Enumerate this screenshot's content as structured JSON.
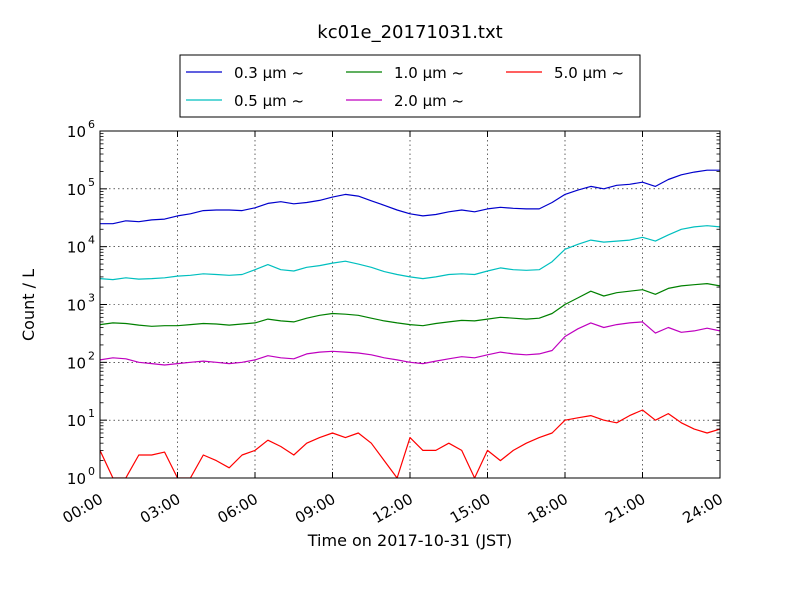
{
  "chart_data": {
    "type": "line",
    "title": "kc01e_20171031.txt",
    "xlabel": "Time on 2017-10-31 (JST)",
    "ylabel": "Count / L",
    "yscale": "log",
    "ylim": [
      1,
      1000000
    ],
    "xlim": [
      "00:00",
      "24:00"
    ],
    "x_ticks": [
      "00:00",
      "03:00",
      "06:00",
      "09:00",
      "12:00",
      "15:00",
      "18:00",
      "21:00",
      "24:00"
    ],
    "y_ticks": [
      {
        "base": "10",
        "exp": "0",
        "value": 1
      },
      {
        "base": "10",
        "exp": "1",
        "value": 10
      },
      {
        "base": "10",
        "exp": "2",
        "value": 100
      },
      {
        "base": "10",
        "exp": "3",
        "value": 1000
      },
      {
        "base": "10",
        "exp": "4",
        "value": 10000
      },
      {
        "base": "10",
        "exp": "5",
        "value": 100000
      },
      {
        "base": "10",
        "exp": "6",
        "value": 1000000
      }
    ],
    "grid": true,
    "legend_position": "top-center",
    "series": [
      {
        "name": "0.3 μm ~",
        "color": "#0000cc",
        "x": [
          "00:00",
          "00:30",
          "01:00",
          "01:30",
          "02:00",
          "02:30",
          "03:00",
          "03:30",
          "04:00",
          "04:30",
          "05:00",
          "05:30",
          "06:00",
          "06:30",
          "07:00",
          "07:30",
          "08:00",
          "08:30",
          "09:00",
          "09:30",
          "10:00",
          "10:30",
          "11:00",
          "11:30",
          "12:00",
          "12:30",
          "13:00",
          "13:30",
          "14:00",
          "14:30",
          "15:00",
          "15:30",
          "16:00",
          "16:30",
          "17:00",
          "17:30",
          "18:00",
          "18:30",
          "19:00",
          "19:30",
          "20:00",
          "20:30",
          "21:00",
          "21:30",
          "22:00",
          "22:30",
          "23:00",
          "23:30",
          "24:00"
        ],
        "y": [
          25000,
          25000,
          28000,
          27000,
          29000,
          30000,
          34000,
          37000,
          42000,
          43000,
          43000,
          42000,
          47000,
          56000,
          60000,
          55000,
          58000,
          63000,
          72000,
          80000,
          75000,
          62000,
          52000,
          43000,
          37000,
          34000,
          36000,
          40000,
          43000,
          40000,
          45000,
          48000,
          46000,
          45000,
          45000,
          58000,
          80000,
          95000,
          110000,
          100000,
          115000,
          120000,
          130000,
          110000,
          145000,
          175000,
          195000,
          210000,
          210000
        ]
      },
      {
        "name": "0.5 μm ~",
        "color": "#00bfbf",
        "x": [
          "00:00",
          "00:30",
          "01:00",
          "01:30",
          "02:00",
          "02:30",
          "03:00",
          "03:30",
          "04:00",
          "04:30",
          "05:00",
          "05:30",
          "06:00",
          "06:30",
          "07:00",
          "07:30",
          "08:00",
          "08:30",
          "09:00",
          "09:30",
          "10:00",
          "10:30",
          "11:00",
          "11:30",
          "12:00",
          "12:30",
          "13:00",
          "13:30",
          "14:00",
          "14:30",
          "15:00",
          "15:30",
          "16:00",
          "16:30",
          "17:00",
          "17:30",
          "18:00",
          "18:30",
          "19:00",
          "19:30",
          "20:00",
          "20:30",
          "21:00",
          "21:30",
          "22:00",
          "22:30",
          "23:00",
          "23:30",
          "24:00"
        ],
        "y": [
          2800,
          2700,
          2900,
          2750,
          2800,
          2900,
          3100,
          3200,
          3400,
          3300,
          3200,
          3300,
          4000,
          4900,
          4000,
          3800,
          4400,
          4700,
          5200,
          5600,
          5000,
          4400,
          3700,
          3300,
          3000,
          2800,
          3000,
          3300,
          3400,
          3300,
          3800,
          4300,
          4000,
          3900,
          4000,
          5500,
          9000,
          11000,
          13000,
          12000,
          12500,
          13000,
          14500,
          12500,
          16000,
          20000,
          22000,
          23000,
          22000
        ]
      },
      {
        "name": "1.0 μm ~",
        "color": "#008000",
        "x": [
          "00:00",
          "00:30",
          "01:00",
          "01:30",
          "02:00",
          "02:30",
          "03:00",
          "03:30",
          "04:00",
          "04:30",
          "05:00",
          "05:30",
          "06:00",
          "06:30",
          "07:00",
          "07:30",
          "08:00",
          "08:30",
          "09:00",
          "09:30",
          "10:00",
          "10:30",
          "11:00",
          "11:30",
          "12:00",
          "12:30",
          "13:00",
          "13:30",
          "14:00",
          "14:30",
          "15:00",
          "15:30",
          "16:00",
          "16:30",
          "17:00",
          "17:30",
          "18:00",
          "18:30",
          "19:00",
          "19:30",
          "20:00",
          "20:30",
          "21:00",
          "21:30",
          "22:00",
          "22:30",
          "23:00",
          "23:30",
          "24:00"
        ],
        "y": [
          450,
          480,
          470,
          440,
          420,
          430,
          430,
          450,
          470,
          460,
          440,
          460,
          480,
          560,
          520,
          500,
          580,
          650,
          700,
          680,
          650,
          580,
          520,
          480,
          450,
          430,
          470,
          500,
          530,
          520,
          560,
          600,
          580,
          560,
          580,
          700,
          1000,
          1300,
          1700,
          1400,
          1600,
          1700,
          1800,
          1500,
          1900,
          2100,
          2200,
          2300,
          2100
        ]
      },
      {
        "name": "2.0 μm ~",
        "color": "#bf00bf",
        "x": [
          "00:00",
          "00:30",
          "01:00",
          "01:30",
          "02:00",
          "02:30",
          "03:00",
          "03:30",
          "04:00",
          "04:30",
          "05:00",
          "05:30",
          "06:00",
          "06:30",
          "07:00",
          "07:30",
          "08:00",
          "08:30",
          "09:00",
          "09:30",
          "10:00",
          "10:30",
          "11:00",
          "11:30",
          "12:00",
          "12:30",
          "13:00",
          "13:30",
          "14:00",
          "14:30",
          "15:00",
          "15:30",
          "16:00",
          "16:30",
          "17:00",
          "17:30",
          "18:00",
          "18:30",
          "19:00",
          "19:30",
          "20:00",
          "20:30",
          "21:00",
          "21:30",
          "22:00",
          "22:30",
          "23:00",
          "23:30",
          "24:00"
        ],
        "y": [
          110,
          120,
          115,
          100,
          95,
          90,
          95,
          100,
          105,
          100,
          95,
          100,
          110,
          130,
          120,
          115,
          140,
          150,
          155,
          150,
          145,
          135,
          120,
          110,
          100,
          95,
          105,
          115,
          125,
          120,
          135,
          150,
          140,
          135,
          140,
          160,
          280,
          380,
          480,
          400,
          450,
          480,
          500,
          320,
          400,
          330,
          350,
          390,
          350
        ]
      },
      {
        "name": "5.0 μm ~",
        "color": "#ff0000",
        "x": [
          "00:00",
          "00:30",
          "01:00",
          "01:30",
          "02:00",
          "02:30",
          "03:00",
          "03:30",
          "04:00",
          "04:30",
          "05:00",
          "05:30",
          "06:00",
          "06:30",
          "07:00",
          "07:30",
          "08:00",
          "08:30",
          "09:00",
          "09:30",
          "10:00",
          "10:30",
          "11:00",
          "11:30",
          "12:00",
          "12:30",
          "13:00",
          "13:30",
          "14:00",
          "14:30",
          "15:00",
          "15:30",
          "16:00",
          "16:30",
          "17:00",
          "17:30",
          "18:00",
          "18:30",
          "19:00",
          "19:30",
          "20:00",
          "20:30",
          "21:00",
          "21:30",
          "22:00",
          "22:30",
          "23:00",
          "23:30",
          "24:00"
        ],
        "y": [
          3,
          1,
          1,
          2.5,
          2.5,
          2.8,
          1,
          1,
          2.5,
          2,
          1.5,
          2.5,
          3,
          4.5,
          3.5,
          2.5,
          4,
          5,
          6,
          5,
          6,
          4,
          2,
          1,
          5,
          3,
          3,
          4,
          3,
          1,
          3,
          2,
          3,
          4,
          5,
          6,
          10,
          11,
          12,
          10,
          9,
          12,
          15,
          10,
          13,
          9,
          7,
          6,
          7
        ]
      }
    ]
  }
}
